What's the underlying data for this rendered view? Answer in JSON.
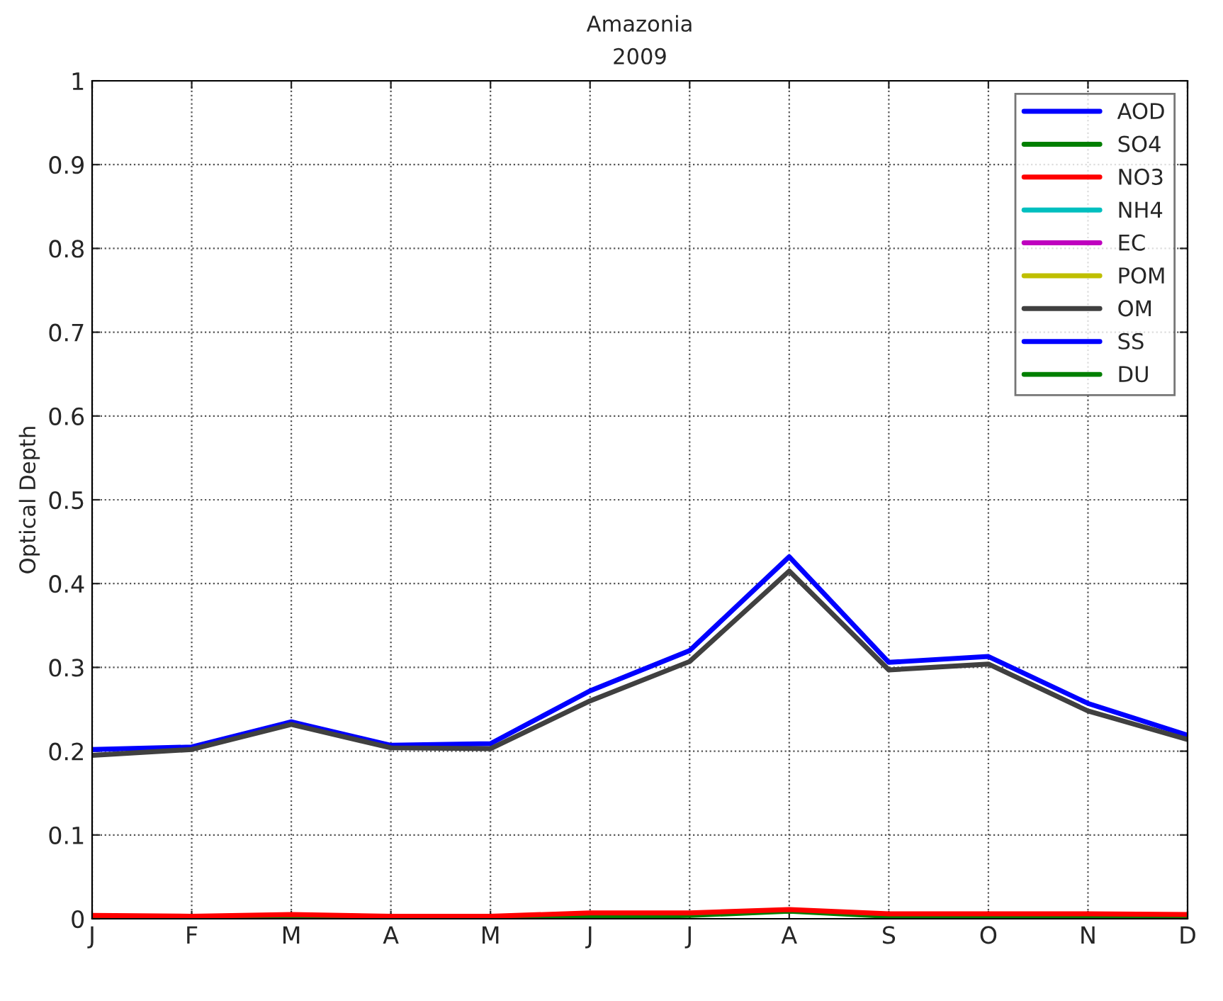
{
  "chart_data": {
    "type": "line",
    "title": "Amazonia",
    "subtitle": "2009",
    "ylabel": "Optical Depth",
    "categories": [
      "J",
      "F",
      "M",
      "A",
      "M",
      "J",
      "J",
      "A",
      "S",
      "O",
      "N",
      "D"
    ],
    "series": [
      {
        "name": "AOD",
        "color": "#0000ff",
        "values": [
          0.202,
          0.205,
          0.235,
          0.207,
          0.209,
          0.272,
          0.32,
          0.432,
          0.306,
          0.313,
          0.257,
          0.219
        ]
      },
      {
        "name": "SO4",
        "color": "#007f00",
        "values": [
          0.001,
          0.001,
          0.001,
          0.001,
          0.001,
          0.002,
          0.004,
          0.009,
          0.003,
          0.002,
          0.001,
          0.001
        ]
      },
      {
        "name": "NO3",
        "color": "#ff0000",
        "values": [
          0.004,
          0.003,
          0.005,
          0.003,
          0.003,
          0.007,
          0.007,
          0.011,
          0.006,
          0.006,
          0.006,
          0.005
        ]
      },
      {
        "name": "NH4",
        "color": "#00bfbf",
        "values": [
          null,
          null,
          null,
          null,
          null,
          null,
          null,
          null,
          null,
          null,
          null,
          null
        ]
      },
      {
        "name": "EC",
        "color": "#bf00bf",
        "values": [
          null,
          null,
          null,
          null,
          null,
          null,
          null,
          null,
          null,
          null,
          null,
          null
        ]
      },
      {
        "name": "POM",
        "color": "#bfbf00",
        "values": [
          null,
          null,
          null,
          null,
          null,
          null,
          null,
          null,
          null,
          null,
          null,
          null
        ]
      },
      {
        "name": "OM",
        "color": "#404040",
        "values": [
          0.195,
          0.202,
          0.232,
          0.204,
          0.203,
          0.26,
          0.307,
          0.415,
          0.297,
          0.304,
          0.248,
          0.214
        ]
      },
      {
        "name": "SS",
        "color": "#0000ff",
        "values": [
          null,
          null,
          null,
          null,
          null,
          null,
          null,
          null,
          null,
          null,
          null,
          null
        ]
      },
      {
        "name": "DU",
        "color": "#007f00",
        "values": [
          null,
          null,
          null,
          null,
          null,
          null,
          null,
          null,
          null,
          null,
          null,
          null
        ]
      }
    ],
    "ylim": [
      0,
      1
    ],
    "yticks": [
      0,
      0.1,
      0.2,
      0.3,
      0.4,
      0.5,
      0.6,
      0.7,
      0.8,
      0.9,
      1
    ],
    "grid": true,
    "legend": "top right",
    "line_style": "solid",
    "marker": "none"
  }
}
